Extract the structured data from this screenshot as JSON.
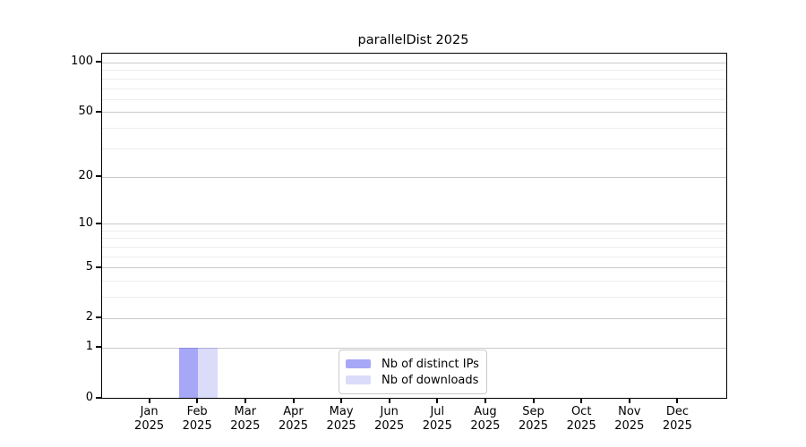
{
  "chart_data": {
    "type": "bar",
    "title": "parallelDist 2025",
    "categories": [
      "Jan",
      "Feb",
      "Mar",
      "Apr",
      "May",
      "Jun",
      "Jul",
      "Aug",
      "Sep",
      "Oct",
      "Nov",
      "Dec"
    ],
    "category_year": "2025",
    "series": [
      {
        "name": "Nb of distinct IPs",
        "color": "#a7a7f8",
        "values": [
          0,
          1,
          0,
          0,
          0,
          0,
          0,
          0,
          0,
          0,
          0,
          0
        ]
      },
      {
        "name": "Nb of downloads",
        "color": "#dbdbfa",
        "values": [
          0,
          1,
          0,
          0,
          0,
          0,
          0,
          0,
          0,
          0,
          0,
          0
        ]
      }
    ],
    "xlabel": "",
    "ylabel": "",
    "y_scale": "log10(value+1)",
    "y_ticks": [
      0,
      1,
      2,
      5,
      10,
      20,
      50,
      100
    ],
    "y_minor_gridlines": [
      3,
      4,
      6,
      7,
      8,
      9,
      30,
      40,
      60,
      70,
      80,
      90
    ],
    "ylim": [
      0,
      113
    ],
    "x_slots": 13,
    "grid": "on",
    "legend_position": "lower-center",
    "colors": {
      "major_grid": "#c9c9c9",
      "minor_grid": "#ededed",
      "spine": "#000000",
      "text": "#000000",
      "legend_border": "#c9c9c9",
      "legend_background": "rgba(255,255,255,0.9)"
    }
  }
}
